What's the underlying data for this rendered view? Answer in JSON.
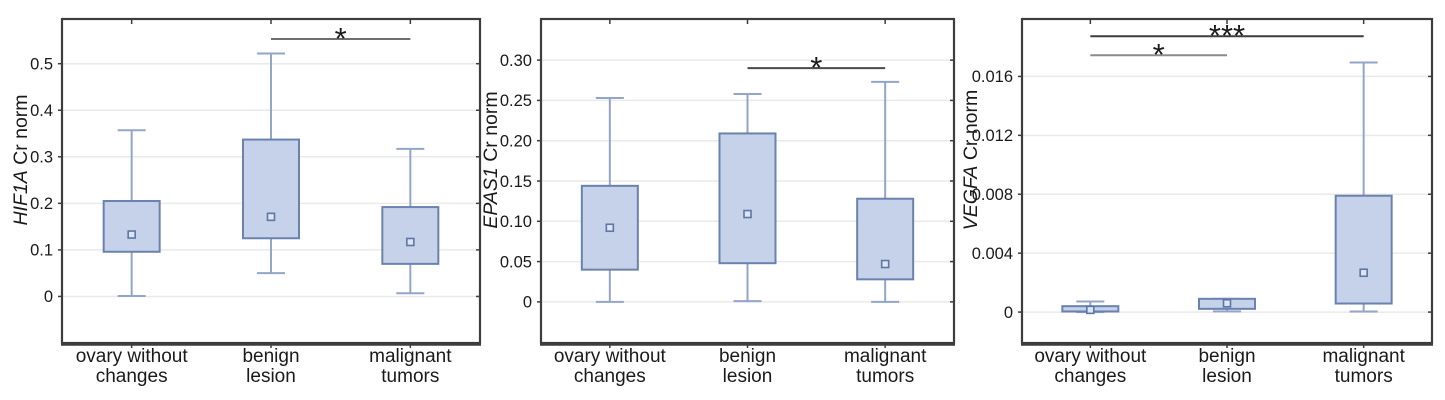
{
  "colors": {
    "background": "#ffffff",
    "box_fill": "#c6d2e9",
    "box_border": "#6a82ae",
    "whisker": "#93a5c9",
    "mean_marker_border": "#5c76a8",
    "mean_marker_fill": "#dde4f2",
    "grid": "#eaeaea",
    "frame": "#3d3d3d",
    "text": "#1a1a1a"
  },
  "chart_data": [
    {
      "type": "box",
      "title": "",
      "ylabel": {
        "text": "HIF1A Cr norm",
        "italic_part": "HIF1A",
        "regular_part": " Cr norm"
      },
      "xlabel": "",
      "grid": true,
      "legend": "none",
      "ylim": [
        -0.1,
        0.596
      ],
      "y_ticks": [
        {
          "v": 0,
          "label": "0"
        },
        {
          "v": 0.1,
          "label": "0.1"
        },
        {
          "v": 0.2,
          "label": "0.2"
        },
        {
          "v": 0.3,
          "label": "0.3"
        },
        {
          "v": 0.4,
          "label": "0.4"
        },
        {
          "v": 0.5,
          "label": "0.5"
        }
      ],
      "categories": [
        {
          "label": "ovary without changes",
          "lines": [
            "ovary without",
            "changes"
          ]
        },
        {
          "label": "benign lesion",
          "lines": [
            "benign",
            "lesion"
          ]
        },
        {
          "label": "malignant tumors",
          "lines": [
            "malignant",
            "tumors"
          ]
        }
      ],
      "boxes": [
        {
          "category": "ovary without changes",
          "whisker_low": 0.001,
          "q1": 0.096,
          "mean": 0.133,
          "q3": 0.205,
          "whisker_high": 0.357
        },
        {
          "category": "benign lesion",
          "whisker_low": 0.05,
          "q1": 0.125,
          "mean": 0.171,
          "q3": 0.337,
          "whisker_high": 0.522
        },
        {
          "category": "malignant tumors",
          "whisker_low": 0.007,
          "q1": 0.07,
          "mean": 0.117,
          "q3": 0.192,
          "whisker_high": 0.317
        }
      ],
      "significance": [
        {
          "from": 1,
          "to": 2,
          "y": 0.553,
          "label": "*",
          "color": "#6e6e6e"
        }
      ]
    },
    {
      "type": "box",
      "title": "",
      "ylabel": {
        "text": "EPAS1 Cr norm",
        "italic_part": "EPAS1",
        "regular_part": " Cr norm"
      },
      "xlabel": "",
      "grid": true,
      "legend": "none",
      "ylim": [
        -0.051,
        0.351
      ],
      "y_ticks": [
        {
          "v": 0,
          "label": "0"
        },
        {
          "v": 0.05,
          "label": "0.05"
        },
        {
          "v": 0.1,
          "label": "0.10"
        },
        {
          "v": 0.15,
          "label": "0.15"
        },
        {
          "v": 0.2,
          "label": "0.20"
        },
        {
          "v": 0.25,
          "label": "0.25"
        },
        {
          "v": 0.3,
          "label": "0.30"
        }
      ],
      "categories": [
        {
          "label": "ovary without changes",
          "lines": [
            "ovary without",
            "changes"
          ]
        },
        {
          "label": "benign lesion",
          "lines": [
            "benign",
            "lesion"
          ]
        },
        {
          "label": "malignant tumors",
          "lines": [
            "malignant",
            "tumors"
          ]
        }
      ],
      "boxes": [
        {
          "category": "ovary without changes",
          "whisker_low": 0.0,
          "q1": 0.04,
          "mean": 0.092,
          "q3": 0.144,
          "whisker_high": 0.253
        },
        {
          "category": "benign lesion",
          "whisker_low": 0.001,
          "q1": 0.048,
          "mean": 0.109,
          "q3": 0.209,
          "whisker_high": 0.258
        },
        {
          "category": "malignant tumors",
          "whisker_low": 0.0,
          "q1": 0.028,
          "mean": 0.047,
          "q3": 0.128,
          "whisker_high": 0.273
        }
      ],
      "significance": [
        {
          "from": 1,
          "to": 2,
          "y": 0.29,
          "label": "*",
          "color": "#4a4a4a"
        }
      ]
    },
    {
      "type": "box",
      "title": "",
      "ylabel": {
        "text": "VEGFA Cr norm",
        "italic_part": "VEGFA",
        "regular_part": " Cr norm"
      },
      "xlabel": "",
      "grid": true,
      "legend": "none",
      "ylim": [
        -0.0021,
        0.0199
      ],
      "y_ticks": [
        {
          "v": 0,
          "label": "0"
        },
        {
          "v": 0.004,
          "label": "0.004"
        },
        {
          "v": 0.008,
          "label": "0.008"
        },
        {
          "v": 0.012,
          "label": "0.012"
        },
        {
          "v": 0.016,
          "label": "0.016"
        }
      ],
      "categories": [
        {
          "label": "ovary without changes",
          "lines": [
            "ovary without",
            "changes"
          ]
        },
        {
          "label": "benign lesion",
          "lines": [
            "benign",
            "lesion"
          ]
        },
        {
          "label": "malignant tumors",
          "lines": [
            "malignant",
            "tumors"
          ]
        }
      ],
      "boxes": [
        {
          "category": "ovary without changes",
          "whisker_low": 0.0,
          "q1": 4e-05,
          "mean": 0.00015,
          "q3": 0.0004,
          "whisker_high": 0.00072
        },
        {
          "category": "benign lesion",
          "whisker_low": 5e-05,
          "q1": 0.00022,
          "mean": 0.0006,
          "q3": 0.0009,
          "whisker_high": 0.0009
        },
        {
          "category": "malignant tumors",
          "whisker_low": 4e-05,
          "q1": 0.00058,
          "mean": 0.00267,
          "q3": 0.0079,
          "whisker_high": 0.01695
        }
      ],
      "significance": [
        {
          "from": 0,
          "to": 1,
          "y": 0.01744,
          "label": "*",
          "color": "#8c8c8c"
        },
        {
          "from": 0,
          "to": 2,
          "y": 0.01873,
          "label": "***",
          "color": "#3c3c3c"
        }
      ]
    }
  ]
}
